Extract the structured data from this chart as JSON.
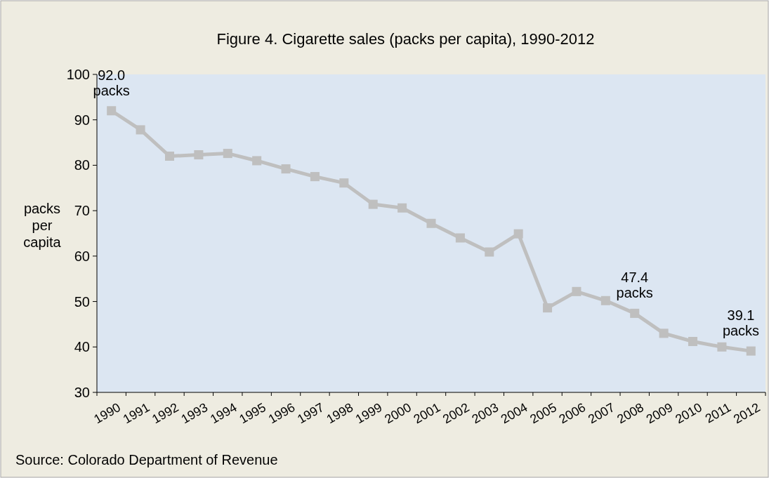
{
  "chart_data": {
    "type": "line",
    "title": "Figure 4. Cigarette sales (packs per capita), 1990-2012",
    "ylabel": "packs per capita",
    "categories": [
      "1990",
      "1991",
      "1992",
      "1993",
      "1994",
      "1995",
      "1996",
      "1997",
      "1998",
      "1999",
      "2000",
      "2001",
      "2002",
      "2003",
      "2004",
      "2005",
      "2006",
      "2007",
      "2008",
      "2009",
      "2010",
      "2011",
      "2012"
    ],
    "series": [
      {
        "color": "#bfbfbf",
        "values": [
          92.0,
          87.8,
          82.0,
          82.3,
          82.6,
          81.0,
          79.2,
          77.5,
          76.1,
          71.4,
          70.6,
          67.2,
          64.0,
          60.9,
          64.9,
          48.6,
          52.2,
          50.2,
          47.4,
          43.0,
          41.2,
          40.0,
          39.1
        ],
        "value_labels": [
          "92.0 packs",
          null,
          null,
          null,
          null,
          null,
          null,
          null,
          null,
          null,
          null,
          null,
          null,
          null,
          null,
          null,
          null,
          null,
          "47.4 packs",
          null,
          null,
          null,
          "39.1 packs"
        ]
      }
    ],
    "ylim": [
      30,
      100
    ],
    "yticks": [
      30,
      40,
      50,
      60,
      70,
      80,
      90,
      100
    ],
    "grid": false,
    "marker": "square",
    "line_style": "solid",
    "annotations": [
      "Source: Colorado Department of Revenue"
    ]
  }
}
